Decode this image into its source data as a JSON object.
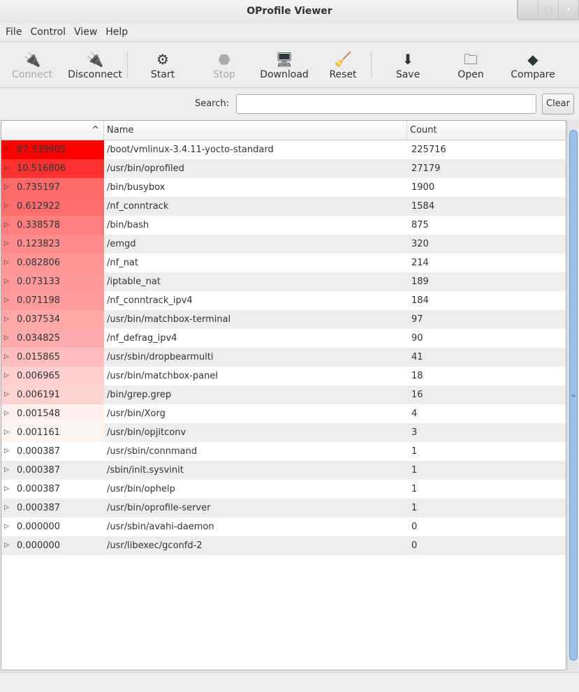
{
  "window": {
    "title": "OProfile Viewer",
    "controls": [
      "_",
      "□",
      "X"
    ]
  },
  "menu": [
    "File",
    "Control",
    "View",
    "Help"
  ],
  "toolbar": [
    {
      "label": "Connect",
      "icon": "plug-connect-icon",
      "glyph": "🔌",
      "enabled": false
    },
    {
      "label": "Disconnect",
      "icon": "plug-disconnect-icon",
      "glyph": "🔌",
      "enabled": true
    },
    {
      "label": "Start",
      "icon": "gears-icon",
      "glyph": "⚙",
      "enabled": true
    },
    {
      "label": "Stop",
      "icon": "stop-icon",
      "glyph": "⬣",
      "enabled": false
    },
    {
      "label": "Download",
      "icon": "network-computers-icon",
      "glyph": "🖥",
      "enabled": true
    },
    {
      "label": "Reset",
      "icon": "broom-icon",
      "glyph": "🧹",
      "enabled": true
    },
    {
      "label": "Save",
      "icon": "save-icon",
      "glyph": "⬇",
      "enabled": true
    },
    {
      "label": "Open",
      "icon": "open-folder-icon",
      "glyph": "🗀",
      "enabled": true
    },
    {
      "label": "Compare",
      "icon": "compare-icon",
      "glyph": "◆",
      "enabled": true
    }
  ],
  "search": {
    "label": "Search:",
    "value": "",
    "clear_label": "Clear"
  },
  "table": {
    "sort_indicator": "^",
    "columns": [
      "",
      "Name",
      "Count"
    ],
    "rows": [
      {
        "pct": "87.339905",
        "name": "/boot/vmlinux-3.4.11-yocto-standard",
        "count": "225716",
        "color": "#ff0000"
      },
      {
        "pct": "10.516806",
        "name": "/usr/bin/oprofiled",
        "count": "27179",
        "color": "#ff3232"
      },
      {
        "pct": "0.735197",
        "name": "/bin/busybox",
        "count": "1900",
        "color": "#ff6a6a"
      },
      {
        "pct": "0.612922",
        "name": "/nf_conntrack",
        "count": "1584",
        "color": "#ff6e6e"
      },
      {
        "pct": "0.338578",
        "name": "/bin/bash",
        "count": "875",
        "color": "#ff7f7f"
      },
      {
        "pct": "0.123823",
        "name": "/emgd",
        "count": "320",
        "color": "#ff8c8c"
      },
      {
        "pct": "0.082806",
        "name": "/nf_nat",
        "count": "214",
        "color": "#ff9595"
      },
      {
        "pct": "0.073133",
        "name": "/iptable_nat",
        "count": "189",
        "color": "#ff9999"
      },
      {
        "pct": "0.071198",
        "name": "/nf_conntrack_ipv4",
        "count": "184",
        "color": "#ff9b9b"
      },
      {
        "pct": "0.037534",
        "name": "/usr/bin/matchbox-terminal",
        "count": "97",
        "color": "#ffa8a8"
      },
      {
        "pct": "0.034825",
        "name": "/nf_defrag_ipv4",
        "count": "90",
        "color": "#ffaaaa"
      },
      {
        "pct": "0.015865",
        "name": "/usr/sbin/dropbearmulti",
        "count": "41",
        "color": "#ffbdbd"
      },
      {
        "pct": "0.006965",
        "name": "/usr/bin/matchbox-panel",
        "count": "18",
        "color": "#ffcfcf"
      },
      {
        "pct": "0.006191",
        "name": "/bin/grep.grep",
        "count": "16",
        "color": "#ffd2d2"
      },
      {
        "pct": "0.001548",
        "name": "/usr/bin/Xorg",
        "count": "4",
        "color": "#fdf0ee"
      },
      {
        "pct": "0.001161",
        "name": "/usr/bin/opjitconv",
        "count": "3",
        "color": "#fbf5f2"
      },
      {
        "pct": "0.000387",
        "name": "/usr/sbin/connmand",
        "count": "1",
        "color": ""
      },
      {
        "pct": "0.000387",
        "name": "/sbin/init.sysvinit",
        "count": "1",
        "color": ""
      },
      {
        "pct": "0.000387",
        "name": "/usr/bin/ophelp",
        "count": "1",
        "color": ""
      },
      {
        "pct": "0.000387",
        "name": "/usr/bin/oprofile-server",
        "count": "1",
        "color": ""
      },
      {
        "pct": "0.000000",
        "name": "/usr/sbin/avahi-daemon",
        "count": "0",
        "color": ""
      },
      {
        "pct": "0.000000",
        "name": "/usr/libexec/gconfd-2",
        "count": "0",
        "color": ""
      }
    ]
  }
}
